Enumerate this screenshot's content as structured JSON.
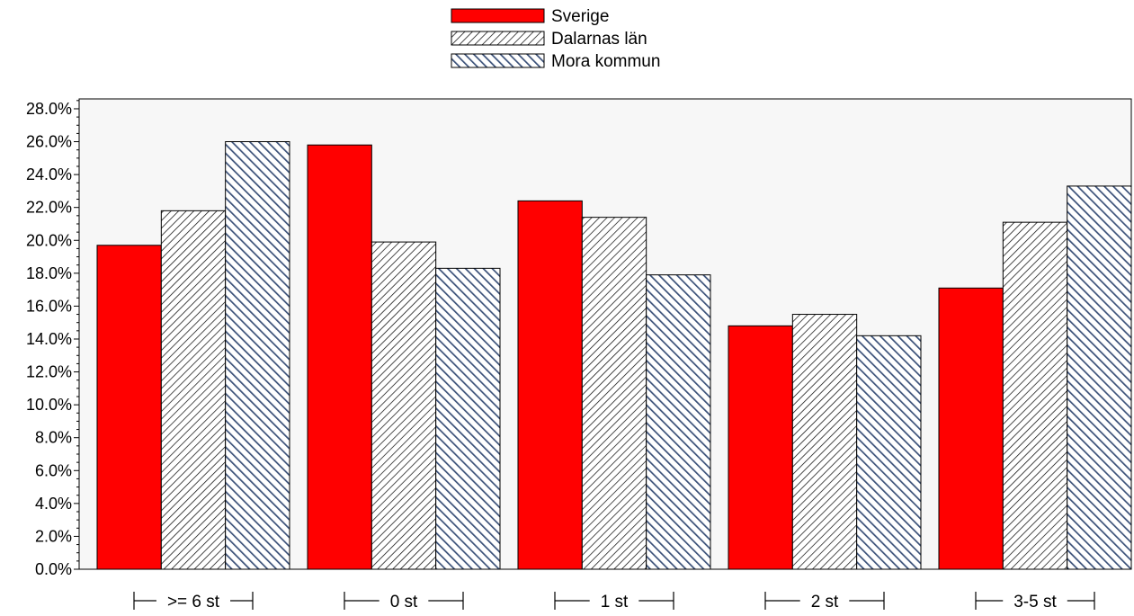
{
  "chart_data": {
    "type": "bar",
    "categories": [
      ">= 6 st",
      "0 st",
      "1 st",
      "2 st",
      "3-5 st"
    ],
    "series": [
      {
        "name": "Sverige",
        "values": [
          19.7,
          25.8,
          22.4,
          14.8,
          17.1
        ],
        "pattern": "solid",
        "color": "#ff0000"
      },
      {
        "name": "Dalarnas län",
        "values": [
          21.8,
          19.9,
          21.4,
          15.5,
          21.1
        ],
        "pattern": "hatch-dark",
        "color": "#000000"
      },
      {
        "name": "Mora kommun",
        "values": [
          26.0,
          18.3,
          17.9,
          14.2,
          23.3
        ],
        "pattern": "hatch-blue",
        "color": "#3a5078"
      }
    ],
    "ylim": [
      0,
      28.6
    ],
    "yticks": [
      "0.0%",
      "2.0%",
      "4.0%",
      "6.0%",
      "8.0%",
      "10.0%",
      "12.0%",
      "14.0%",
      "16.0%",
      "18.0%",
      "20.0%",
      "22.0%",
      "24.0%",
      "26.0%",
      "28.0%"
    ],
    "grid": false,
    "legend": "top-center",
    "plot_background": "#f7f7f7"
  }
}
